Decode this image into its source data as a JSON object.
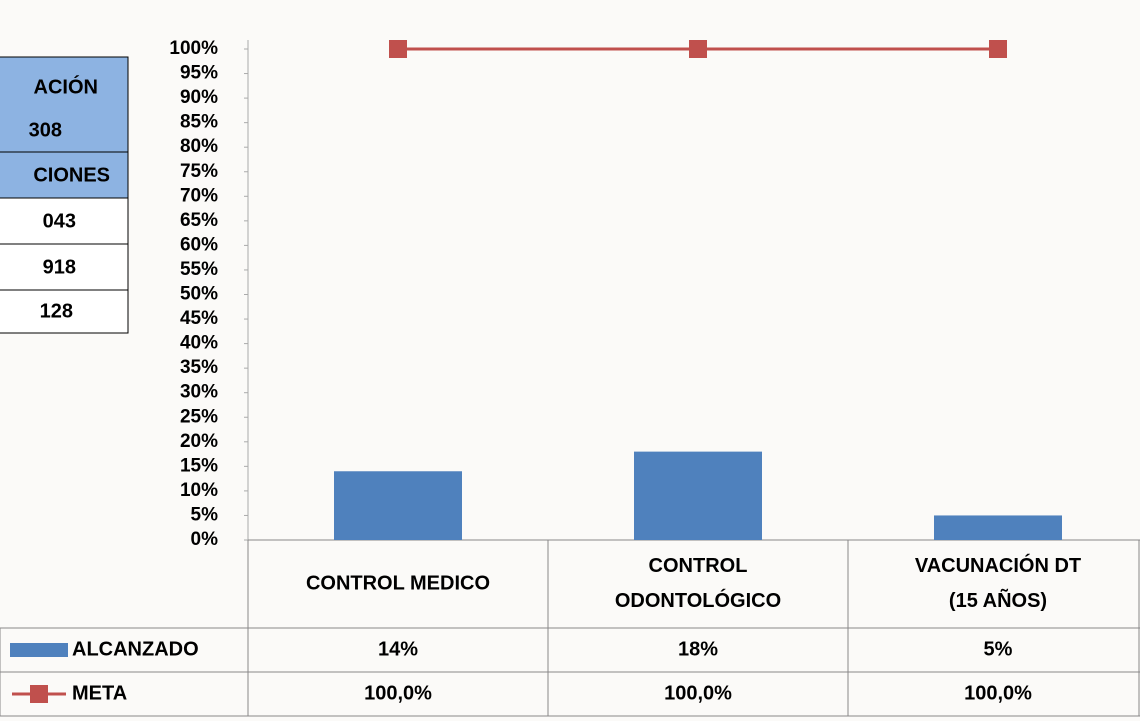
{
  "side_table": {
    "rows": [
      [
        "ACIÓN",
        "308"
      ],
      [
        "CIONES"
      ],
      [
        "043"
      ],
      [
        "918"
      ],
      [
        "128"
      ]
    ]
  },
  "chart_data": {
    "type": "bar",
    "categories": [
      "CONTROL MEDICO",
      "CONTROL ODONTOLÓGICO",
      "VACUNACIÓN  DT (15 AÑOS)"
    ],
    "series": [
      {
        "name": "ALCANZADO",
        "type": "bar",
        "color": "#4f81bd",
        "values": [
          14,
          18,
          5
        ],
        "value_labels": [
          "14%",
          "18%",
          "5%"
        ]
      },
      {
        "name": "META",
        "type": "line",
        "color": "#c0504d",
        "values": [
          100,
          100,
          100
        ],
        "value_labels": [
          "100,0%",
          "100,0%",
          "100,0%"
        ]
      }
    ],
    "ylim": [
      0,
      100
    ],
    "yticks": [
      {
        "value": 0,
        "label": "0%"
      },
      {
        "value": 5,
        "label": "5%"
      },
      {
        "value": 10,
        "label": "10%"
      },
      {
        "value": 15,
        "label": "15%"
      },
      {
        "value": 20,
        "label": "20%"
      },
      {
        "value": 25,
        "label": "25%"
      },
      {
        "value": 30,
        "label": "30%"
      },
      {
        "value": 35,
        "label": "35%"
      },
      {
        "value": 40,
        "label": "40%"
      },
      {
        "value": 45,
        "label": "45%"
      },
      {
        "value": 50,
        "label": "50%"
      },
      {
        "value": 55,
        "label": "55%"
      },
      {
        "value": 60,
        "label": "60%"
      },
      {
        "value": 65,
        "label": "65%"
      },
      {
        "value": 70,
        "label": "70%"
      },
      {
        "value": 75,
        "label": "75%"
      },
      {
        "value": 80,
        "label": "80%"
      },
      {
        "value": 85,
        "label": "85%"
      },
      {
        "value": 90,
        "label": "90%"
      },
      {
        "value": 95,
        "label": "95%"
      },
      {
        "value": 100,
        "label": "100%"
      }
    ],
    "grid": false
  }
}
